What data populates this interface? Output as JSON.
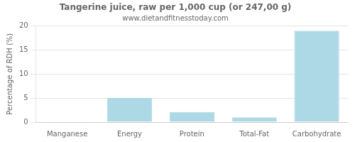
{
  "chart_data": {
    "type": "bar",
    "title": "Tangerine juice, raw per 1,000 cup (or 247,00 g)",
    "subtitle": "www.dietandfitnesstoday.com",
    "categories": [
      "Manganese",
      "Energy",
      "Protein",
      "Total-Fat",
      "Carbohydrate"
    ],
    "values": [
      0.1,
      5.0,
      2.1,
      1.0,
      19.0
    ],
    "color": "#add8e6",
    "ylabel": "Percentage of RDH (%)",
    "ylim": [
      0,
      20
    ],
    "yticks": [
      0,
      5,
      10,
      15,
      20
    ],
    "grid": true
  }
}
